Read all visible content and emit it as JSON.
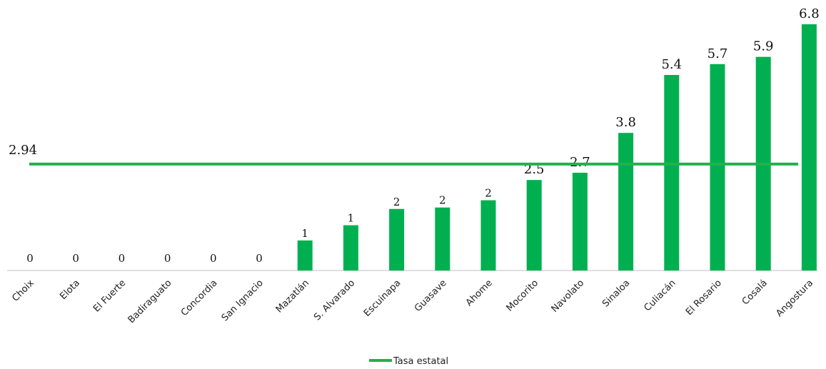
{
  "chart_data": {
    "type": "bar",
    "categories": [
      "Choix",
      "Elota",
      "El Fuerte",
      "Badiraguato",
      "Concordia",
      "San Ignacio",
      "Mazatlán",
      "S. Alvarado",
      "Escuinapa",
      "Guasave",
      "Ahome",
      "Mocorito",
      "Navolato",
      "Sinaloa",
      "Culiacán",
      "El Rosario",
      "Cosalá",
      "Angostura"
    ],
    "values": [
      0,
      0,
      0,
      0,
      0,
      0,
      0.83,
      1.25,
      1.7,
      1.74,
      1.94,
      2.5,
      2.7,
      3.8,
      5.4,
      5.7,
      5.9,
      6.8
    ],
    "data_labels": [
      "0",
      "0",
      "0",
      "0",
      "0",
      "0",
      "1",
      "1",
      "2",
      "2",
      "2",
      "2.5",
      "2.7",
      "3.8",
      "5.4",
      "5.7",
      "5.9",
      "6.8"
    ],
    "reference_line": {
      "name": "Tasa estatal",
      "value": 2.94,
      "label": "2.94"
    },
    "ylim": [
      0,
      6.8
    ],
    "bar_color": "#00b050",
    "line_color": "#22b14c",
    "legend": {
      "position": "bottom-center",
      "entries": [
        "Tasa estatal"
      ]
    },
    "grid": false
  }
}
